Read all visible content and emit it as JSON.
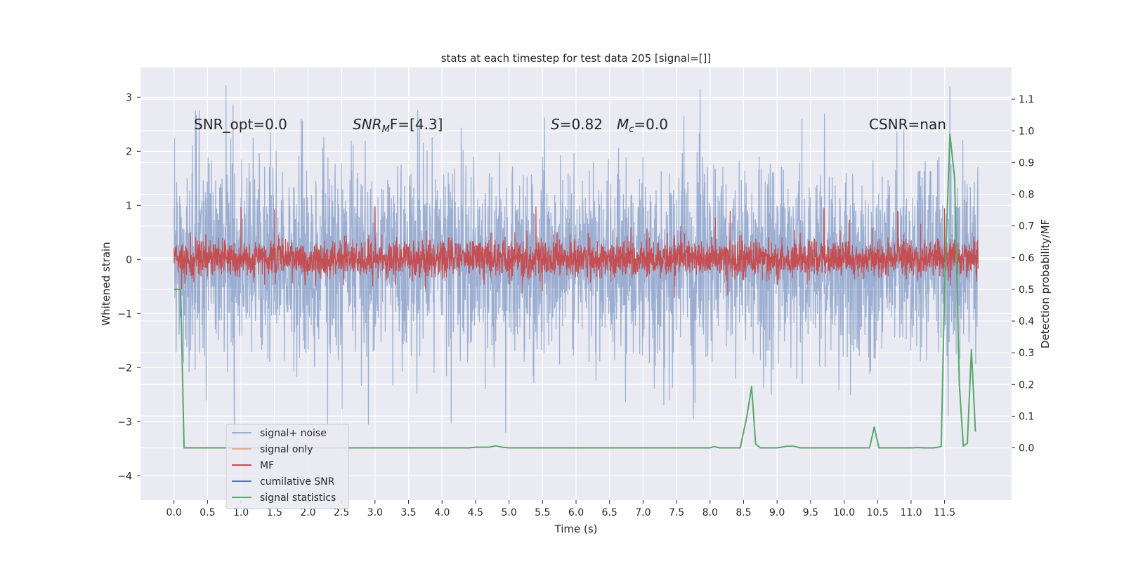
{
  "chart_data": {
    "type": "line",
    "title": "stats at each timestep for test data 205 [signal=[]]",
    "xlabel": "Time (s)",
    "ylabel": "Whitened strain",
    "y2label": "Detection probability/MF",
    "xlim": [
      -0.5,
      12.5
    ],
    "ylim": [
      -4.45,
      3.55
    ],
    "y2lim": [
      -0.165,
      1.2
    ],
    "x_ticks": [
      "0.0",
      "0.5",
      "1.0",
      "1.5",
      "2.0",
      "2.5",
      "3.0",
      "3.5",
      "4.0",
      "4.5",
      "5.0",
      "5.5",
      "6.0",
      "6.5",
      "7.0",
      "7.5",
      "8.0",
      "8.5",
      "9.0",
      "9.5",
      "10.0",
      "10.5",
      "11.0",
      "11.5"
    ],
    "y_ticks": [
      "3",
      "2",
      "1",
      "0",
      "−1",
      "−2",
      "−3",
      "−4"
    ],
    "y2_ticks": [
      "1.1",
      "1.0",
      "0.9",
      "0.8",
      "0.7",
      "0.6",
      "0.5",
      "0.4",
      "0.3",
      "0.2",
      "0.1",
      "0.0"
    ],
    "grid": true,
    "legend_position": "lower-left",
    "annotations": [
      {
        "id": "snr-opt",
        "text": "SNR_opt=0.0"
      },
      {
        "id": "snr-mf",
        "text": "SNR",
        "sub": "M",
        "rest": "F=[4.3]"
      },
      {
        "id": "s",
        "text": "S",
        "rest": "=0.82"
      },
      {
        "id": "mc",
        "text": "M",
        "sub": "c",
        "rest": "=0.0"
      },
      {
        "id": "csnr",
        "text": "CSNR=nan"
      }
    ],
    "series": [
      {
        "name": "signal+ noise",
        "color": "#4c72b0",
        "axis": "left",
        "style": "noise",
        "t_range": [
          0.0,
          12.0
        ],
        "amplitude_std": 0.9,
        "extremes": [
          [
            0.9,
            -3.3
          ],
          [
            1.9,
            2.6
          ],
          [
            2.9,
            -3.05
          ],
          [
            4.95,
            -3.2
          ],
          [
            7.85,
            3.15
          ],
          [
            7.75,
            -2.95
          ],
          [
            11.58,
            3.2
          ],
          [
            11.55,
            -2.9
          ]
        ]
      },
      {
        "name": "signal only",
        "color": "#dd8452",
        "axis": "left",
        "style": "flat",
        "values": [
          0.0
        ]
      },
      {
        "name": "MF",
        "color": "#c44e52",
        "axis": "left",
        "style": "noise",
        "t_range": [
          0.0,
          12.0
        ],
        "amplitude_std": 0.18,
        "offset": 0.02,
        "extremes": [
          [
            1.0,
            0.97
          ],
          [
            1.5,
            0.92
          ],
          [
            3.0,
            0.98
          ],
          [
            5.4,
            0.98
          ],
          [
            8.3,
            0.9
          ],
          [
            9.7,
            0.95
          ],
          [
            10.8,
            0.9
          ],
          [
            11.5,
            0.95
          ]
        ]
      },
      {
        "name": "cumilative SNR",
        "color": "#4c72b0",
        "axis": "left",
        "style": "hidden",
        "values": []
      },
      {
        "name": "signal statistics",
        "color": "#55a868",
        "axis": "right",
        "style": "line",
        "x": [
          0.0,
          0.05,
          0.1,
          0.15,
          0.25,
          0.5,
          1.0,
          2.0,
          3.0,
          4.0,
          4.4,
          4.5,
          4.7,
          4.8,
          4.9,
          5.0,
          6.0,
          7.0,
          7.8,
          8.0,
          8.05,
          8.15,
          8.3,
          8.45,
          8.55,
          8.62,
          8.68,
          8.75,
          9.0,
          9.15,
          9.25,
          9.35,
          10.0,
          10.3,
          10.38,
          10.45,
          10.52,
          10.6,
          11.0,
          11.1,
          11.2,
          11.35,
          11.45,
          11.5,
          11.58,
          11.65,
          11.72,
          11.78,
          11.84,
          11.9,
          11.96
        ],
        "y": [
          0.5,
          0.5,
          0.5,
          0.0,
          0.0,
          0.0,
          0.0,
          0.0,
          0.0,
          0.0,
          0.0,
          0.002,
          0.002,
          0.006,
          0.002,
          0.0,
          0.0,
          0.0,
          0.0,
          0.0,
          0.004,
          0.0,
          0.0,
          0.0,
          0.1,
          0.193,
          0.012,
          0.0,
          0.0,
          0.005,
          0.005,
          0.0,
          0.0,
          0.0,
          0.0,
          0.066,
          0.0,
          0.0,
          0.0,
          0.001,
          0.0,
          0.0,
          0.004,
          0.5,
          0.99,
          0.85,
          0.2,
          0.005,
          0.015,
          0.31,
          0.051
        ]
      }
    ]
  }
}
